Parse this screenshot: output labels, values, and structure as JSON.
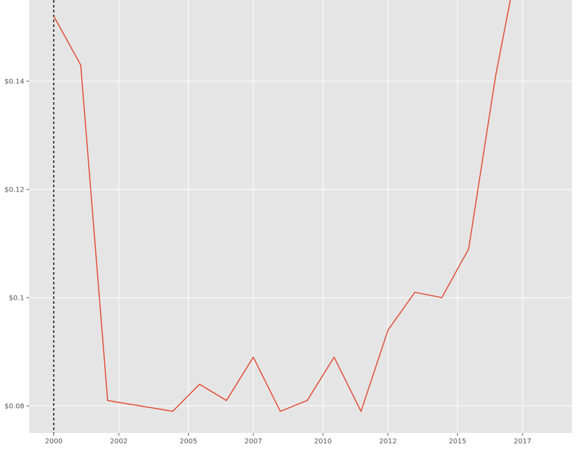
{
  "chart_data": {
    "type": "line",
    "title": "",
    "xlabel": "",
    "ylabel": "",
    "x": [
      "2000-01-01",
      "2001-01-01",
      "2002-01-01",
      "2004-06-01",
      "2005-06-01",
      "2006-06-01",
      "2007-06-01",
      "2008-06-01",
      "2009-06-01",
      "2010-06-01",
      "2011-06-01",
      "2012-06-01",
      "2013-06-01",
      "2014-06-01",
      "2015-06-01",
      "2016-06-01",
      "2017-01-01"
    ],
    "values": [
      0.152,
      0.143,
      0.081,
      0.079,
      0.084,
      0.081,
      0.089,
      0.079,
      0.081,
      0.089,
      0.079,
      0.094,
      0.101,
      0.1,
      0.109,
      0.141,
      0.156
    ],
    "xlim": [
      "1999-02-01",
      "2019-04-01"
    ],
    "ylim": [
      0.075,
      0.155
    ],
    "x_ticks": [
      {
        "date": "2000-01-01",
        "label": "2000"
      },
      {
        "date": "2002-06-01",
        "label": "2002"
      },
      {
        "date": "2005-01-01",
        "label": "2005"
      },
      {
        "date": "2007-06-01",
        "label": "2007"
      },
      {
        "date": "2010-01-01",
        "label": "2010"
      },
      {
        "date": "2012-06-01",
        "label": "2012"
      },
      {
        "date": "2015-01-01",
        "label": "2015"
      },
      {
        "date": "2017-06-01",
        "label": "2017"
      }
    ],
    "y_ticks": [
      {
        "value": 0.08,
        "label": "$0.08"
      },
      {
        "value": 0.1,
        "label": "$0.1"
      },
      {
        "value": 0.12,
        "label": "$0.12"
      },
      {
        "value": 0.14,
        "label": "$0.14"
      }
    ],
    "reference_line": {
      "date": "2000-01-01",
      "style": "dashed",
      "color": "#111111"
    },
    "grid": true,
    "colors": {
      "background": "#e5e5e5",
      "grid": "#ffffff",
      "line": "#e24a33",
      "ticks": "#555555"
    }
  }
}
